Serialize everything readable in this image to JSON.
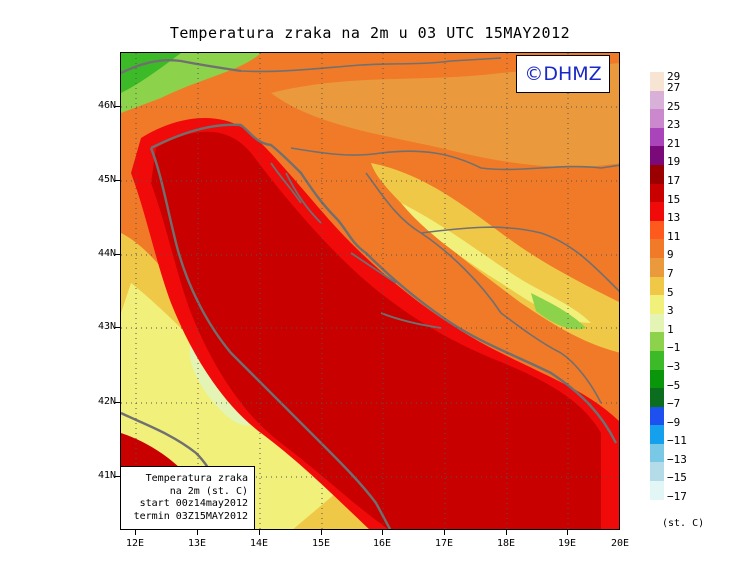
{
  "title": "Temperatura zraka na 2m u 03 UTC 15MAY2012",
  "logo_text": "©DHMZ",
  "info_box": {
    "line1": "Temperatura zraka",
    "line2": "na 2m (st. C)",
    "line3": "start 00z14may2012",
    "line4": "termin 03Z15MAY2012"
  },
  "lat_labels": [
    "46N",
    "45N",
    "44N",
    "43N",
    "42N",
    "41N"
  ],
  "lon_labels": [
    "12E",
    "13E",
    "14E",
    "15E",
    "16E",
    "17E",
    "18E",
    "19E",
    "20E"
  ],
  "legend": {
    "top_label": "29",
    "units": "(st. C)",
    "bins": [
      {
        "label": "27",
        "color": "#f7e4d2"
      },
      {
        "label": "25",
        "color": "#d8b0d8"
      },
      {
        "label": "23",
        "color": "#cc88cc"
      },
      {
        "label": "21",
        "color": "#aa44bb"
      },
      {
        "label": "19",
        "color": "#7a0a7a"
      },
      {
        "label": "17",
        "color": "#9a0000"
      },
      {
        "label": "15",
        "color": "#c80000"
      },
      {
        "label": "13",
        "color": "#f00a0a"
      },
      {
        "label": "11",
        "color": "#ff5a1e"
      },
      {
        "label": "9",
        "color": "#f07a28"
      },
      {
        "label": "7",
        "color": "#ea9a3c"
      },
      {
        "label": "5",
        "color": "#f0c848"
      },
      {
        "label": "3",
        "color": "#f0f07a"
      },
      {
        "label": "1",
        "color": "#e4f4b4"
      },
      {
        "label": "−1",
        "color": "#8cd24a"
      },
      {
        "label": "−3",
        "color": "#3cba28"
      },
      {
        "label": "−5",
        "color": "#0a960a"
      },
      {
        "label": "−7",
        "color": "#0a6e1e"
      },
      {
        "label": "−9",
        "color": "#1e50f0"
      },
      {
        "label": "−11",
        "color": "#14a0ec"
      },
      {
        "label": "−13",
        "color": "#78c8e6"
      },
      {
        "label": "−15",
        "color": "#b4dce8"
      },
      {
        "label": "−17",
        "color": "#e2f6f6"
      }
    ]
  }
}
